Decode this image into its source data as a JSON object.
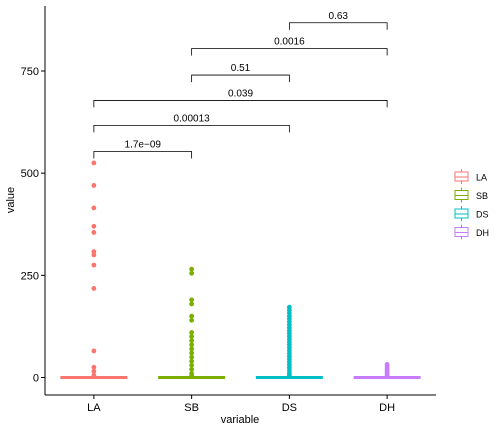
{
  "chart_data": {
    "type": "box",
    "xlabel": "variable",
    "ylabel": "value",
    "ylim": [
      -20,
      915
    ],
    "yticks": [
      0,
      250,
      500,
      750
    ],
    "ytick_labels": [
      "0",
      "250",
      "500",
      "750"
    ],
    "categories": [
      "LA",
      "SB",
      "DS",
      "DH"
    ],
    "legend": {
      "position": "right",
      "entries": [
        "LA",
        "SB",
        "DS",
        "DH"
      ]
    },
    "colors": {
      "LA": "#F8766D",
      "SB": "#7CAE00",
      "DS": "#00BFC4",
      "DH": "#C77CFF"
    },
    "series": [
      {
        "name": "LA",
        "box": {
          "q1": 0,
          "median": 0,
          "q3": 0
        },
        "outliers": [
          525,
          470,
          415,
          370,
          355,
          308,
          300,
          275,
          218,
          65,
          25,
          15,
          5
        ]
      },
      {
        "name": "SB",
        "box": {
          "q1": 0,
          "median": 0,
          "q3": 0
        },
        "outliers": [
          265,
          255,
          190,
          180,
          150,
          140,
          110,
          100,
          90,
          80,
          70,
          60,
          50,
          40,
          30,
          20,
          10,
          5
        ]
      },
      {
        "name": "DS",
        "box": {
          "q1": 0,
          "median": 0,
          "q3": 0
        },
        "outliers": [
          172,
          165,
          158,
          150,
          143,
          136,
          129,
          122,
          115,
          108,
          101,
          94,
          87,
          80,
          73,
          66,
          59,
          52,
          45,
          38,
          31,
          24,
          17,
          10,
          5
        ]
      },
      {
        "name": "DH",
        "box": {
          "q1": 0,
          "median": 0,
          "q3": 0
        },
        "outliers": [
          32,
          28,
          24,
          20,
          16,
          12,
          8,
          5
        ]
      }
    ],
    "comparisons": [
      {
        "groups": [
          "LA",
          "SB"
        ],
        "label": "1.7e−09",
        "y": 553
      },
      {
        "groups": [
          "LA",
          "DS"
        ],
        "label": "0.00013",
        "y": 617
      },
      {
        "groups": [
          "LA",
          "DH"
        ],
        "label": "0.039",
        "y": 678
      },
      {
        "groups": [
          "SB",
          "DS"
        ],
        "label": "0.51",
        "y": 740
      },
      {
        "groups": [
          "SB",
          "DH"
        ],
        "label": "0.0016",
        "y": 805
      },
      {
        "groups": [
          "DS",
          "DH"
        ],
        "label": "0.63",
        "y": 868
      }
    ]
  }
}
